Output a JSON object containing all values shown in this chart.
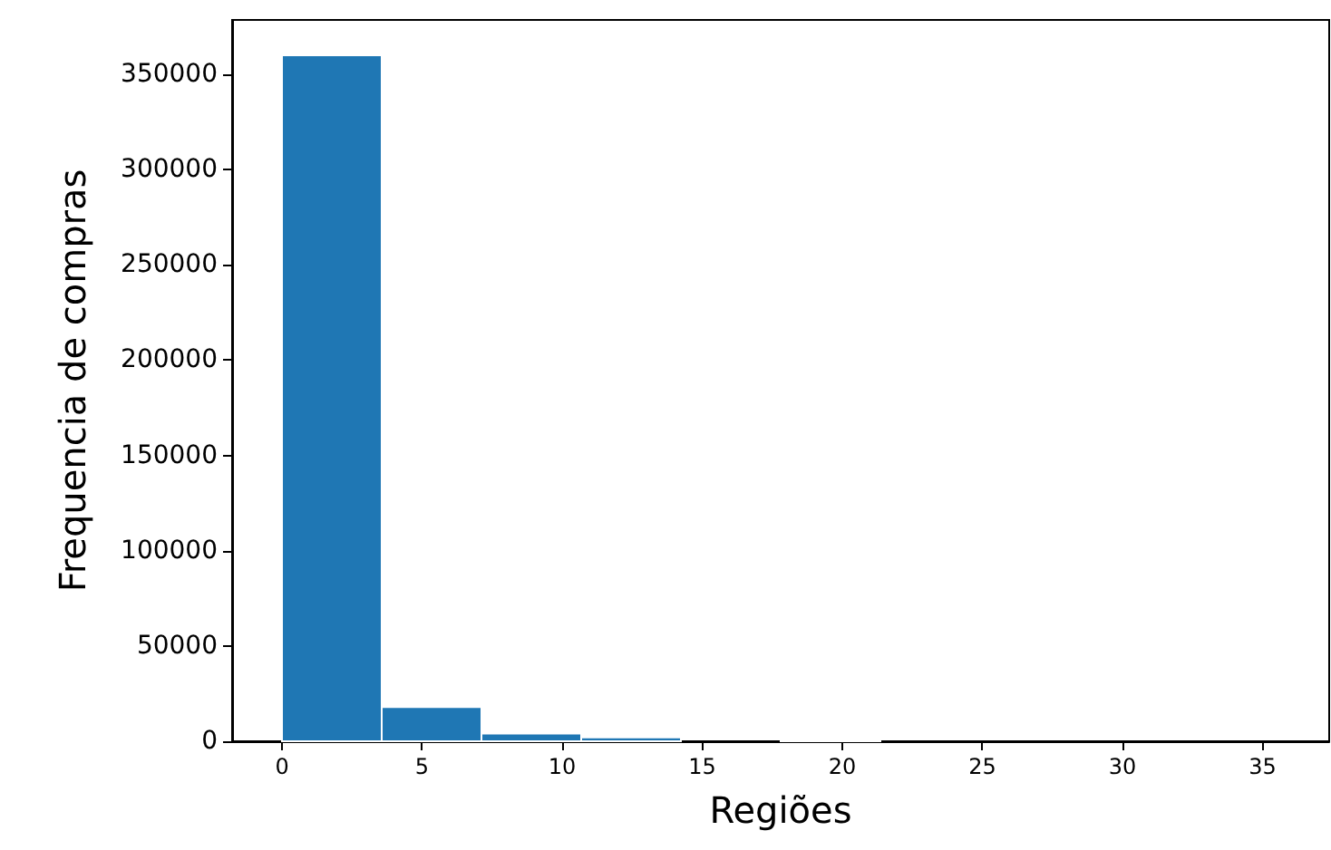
{
  "chart_data": {
    "type": "histogram",
    "xlabel": "Regiões",
    "ylabel": "Frequencia de compras",
    "bins": [
      0,
      3.56,
      7.12,
      10.68,
      14.24,
      17.8,
      21.36,
      24.92,
      28.48,
      32.04,
      35.6
    ],
    "values": [
      360000,
      18000,
      4000,
      2000,
      0,
      1000,
      0,
      0,
      0,
      0
    ],
    "color": "#1f77b4",
    "xlim": [
      -1.78,
      37.38
    ],
    "xticks": [
      0,
      5,
      10,
      15,
      20,
      25,
      30,
      35
    ],
    "ylim": [
      0,
      378500
    ],
    "yticks": [
      0,
      50000,
      100000,
      150000,
      200000,
      250000,
      300000,
      350000
    ],
    "grid": false
  }
}
